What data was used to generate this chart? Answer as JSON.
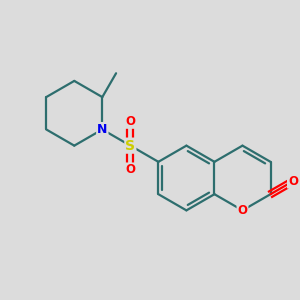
{
  "bg_color": "#dcdcdc",
  "bond_color": "#2d6e6e",
  "bond_width": 1.6,
  "atom_colors": {
    "N": "#0000ee",
    "S": "#cccc00",
    "O": "#ff0000",
    "C": "#2d6e6e"
  },
  "figsize": [
    3.0,
    3.0
  ],
  "dpi": 100,
  "xlim": [
    -1.8,
    2.8
  ],
  "ylim": [
    -2.2,
    2.0
  ]
}
